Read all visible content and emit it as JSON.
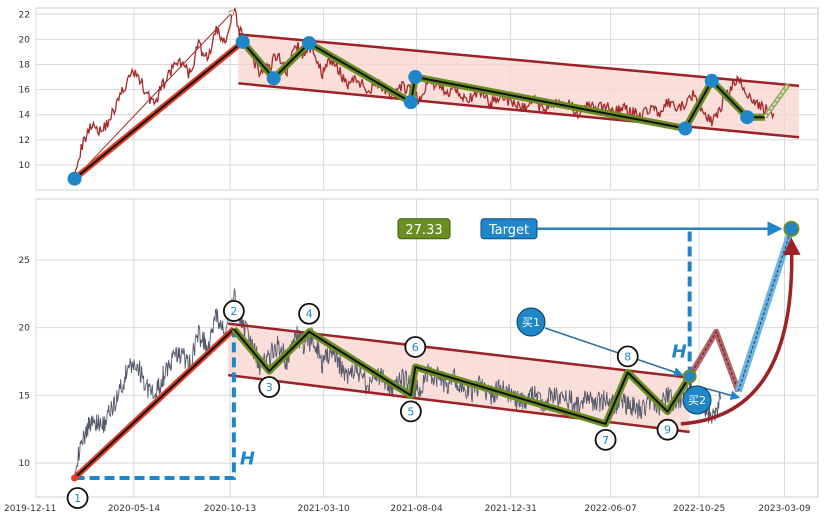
{
  "chart_data": [
    {
      "type": "line",
      "panel": "top",
      "title": "",
      "xlabel": "",
      "ylabel": "",
      "ylim": [
        8,
        22.5
      ],
      "y_ticks": [
        10,
        12,
        14,
        16,
        18,
        20,
        22
      ],
      "grid": true,
      "series": [
        {
          "role": "price",
          "color": "#a52a2a",
          "x": [
            "2020-02-10",
            "2020-02-24",
            "2020-03-09",
            "2020-03-23",
            "2020-04-06",
            "2020-04-20",
            "2020-05-04",
            "2020-05-18",
            "2020-06-01",
            "2020-06-15",
            "2020-06-29",
            "2020-07-13",
            "2020-07-27",
            "2020-08-10",
            "2020-08-24",
            "2020-09-07",
            "2020-09-21",
            "2020-10-05",
            "2020-10-19",
            "2020-11-02",
            "2020-11-16",
            "2020-11-30",
            "2020-12-14",
            "2020-12-28",
            "2021-01-11",
            "2021-01-25",
            "2021-02-08",
            "2021-02-22",
            "2021-03-08",
            "2021-03-22",
            "2021-04-05",
            "2021-04-19",
            "2021-05-03",
            "2021-05-17",
            "2021-05-31",
            "2021-06-14",
            "2021-06-28",
            "2021-07-12",
            "2021-07-26",
            "2021-08-09",
            "2021-08-23",
            "2021-09-06",
            "2021-09-20",
            "2021-10-04",
            "2021-10-18",
            "2021-11-01",
            "2021-11-15",
            "2021-11-29",
            "2021-12-13",
            "2021-12-27",
            "2022-01-10",
            "2022-01-24",
            "2022-02-07",
            "2022-02-21",
            "2022-03-07",
            "2022-03-21",
            "2022-04-04",
            "2022-04-18",
            "2022-05-02",
            "2022-05-16",
            "2022-05-30",
            "2022-06-13",
            "2022-06-27",
            "2022-07-11",
            "2022-07-25",
            "2022-08-08",
            "2022-08-22",
            "2022-09-05",
            "2022-09-19",
            "2022-10-03",
            "2022-10-17",
            "2022-10-31",
            "2022-11-14",
            "2022-11-28",
            "2022-12-12",
            "2022-12-26",
            "2023-01-09",
            "2023-01-23",
            "2023-02-06",
            "2023-02-20"
          ],
          "y": [
            9.6,
            11.8,
            13.4,
            12.6,
            13.7,
            15.2,
            16.8,
            17.4,
            15.9,
            14.8,
            16.4,
            17.6,
            18.1,
            17.2,
            19.6,
            18.4,
            20.6,
            19.8,
            22.1,
            20.3,
            18.6,
            17.2,
            17.8,
            18.9,
            17.5,
            19.6,
            18.7,
            19.4,
            17.2,
            18.4,
            17.3,
            16.4,
            16.9,
            15.8,
            16.6,
            16.1,
            15.3,
            16.2,
            15.8,
            15.2,
            16.7,
            16.4,
            15.7,
            16.3,
            15.4,
            15.2,
            15.9,
            14.9,
            15.6,
            15.1,
            14.7,
            14.6,
            15.2,
            14.3,
            15.1,
            14.6,
            14.8,
            14.1,
            14.9,
            14.4,
            14.7,
            14.3,
            14.5,
            14.2,
            13.9,
            14.6,
            14.1,
            14.9,
            14.4,
            14.8,
            15.6,
            14.2,
            13.4,
            14.7,
            15.9,
            16.8,
            15.7,
            14.9,
            14.4,
            14.1
          ]
        }
      ]
    },
    {
      "type": "line",
      "panel": "bottom",
      "title": "",
      "xlabel": "",
      "ylabel": "",
      "ylim": [
        7.5,
        29.5
      ],
      "y_ticks": [
        10,
        15,
        20,
        25
      ],
      "grid": true,
      "x_tick_labels": [
        "2019-12-11",
        "2020-05-14",
        "2020-10-13",
        "2021-03-10",
        "2021-08-04",
        "2021-12-31",
        "2022-06-07",
        "2022-10-25",
        "2023-03-09"
      ],
      "series": [
        {
          "role": "price",
          "color": "#555a6b",
          "x": [
            "2020-02-10",
            "2020-02-24",
            "2020-03-09",
            "2020-03-23",
            "2020-04-06",
            "2020-04-20",
            "2020-05-04",
            "2020-05-18",
            "2020-06-01",
            "2020-06-15",
            "2020-06-29",
            "2020-07-13",
            "2020-07-27",
            "2020-08-10",
            "2020-08-24",
            "2020-09-07",
            "2020-09-21",
            "2020-10-05",
            "2020-10-19",
            "2020-11-02",
            "2020-11-16",
            "2020-11-30",
            "2020-12-14",
            "2020-12-28",
            "2021-01-11",
            "2021-01-25",
            "2021-02-08",
            "2021-02-22",
            "2021-03-08",
            "2021-03-22",
            "2021-04-05",
            "2021-04-19",
            "2021-05-03",
            "2021-05-17",
            "2021-05-31",
            "2021-06-14",
            "2021-06-28",
            "2021-07-12",
            "2021-07-26",
            "2021-08-09",
            "2021-08-23",
            "2021-09-06",
            "2021-09-20",
            "2021-10-04",
            "2021-10-18",
            "2021-11-01",
            "2021-11-15",
            "2021-11-29",
            "2021-12-13",
            "2021-12-27",
            "2022-01-10",
            "2022-01-24",
            "2022-02-07",
            "2022-02-21",
            "2022-03-07",
            "2022-03-21",
            "2022-04-04",
            "2022-04-18",
            "2022-05-02",
            "2022-05-16",
            "2022-05-30",
            "2022-06-13",
            "2022-06-27",
            "2022-07-11",
            "2022-07-25",
            "2022-08-08",
            "2022-08-22",
            "2022-09-05",
            "2022-09-19",
            "2022-10-03",
            "2022-10-17",
            "2022-10-31",
            "2022-11-14",
            "2022-11-28"
          ],
          "y": [
            9.6,
            11.8,
            13.4,
            12.6,
            13.7,
            15.2,
            16.8,
            17.4,
            15.9,
            14.8,
            16.4,
            17.6,
            18.1,
            17.2,
            19.6,
            18.4,
            20.6,
            19.8,
            22.1,
            20.3,
            18.6,
            17.2,
            17.8,
            18.9,
            17.5,
            19.6,
            18.7,
            19.4,
            17.2,
            18.4,
            17.3,
            16.4,
            16.9,
            15.8,
            16.6,
            16.1,
            15.3,
            16.2,
            15.8,
            15.2,
            16.7,
            16.4,
            15.7,
            16.3,
            15.4,
            15.2,
            15.9,
            14.9,
            15.6,
            15.1,
            14.7,
            14.6,
            15.2,
            14.3,
            15.1,
            14.6,
            14.8,
            14.1,
            14.9,
            14.4,
            14.7,
            14.3,
            14.5,
            14.2,
            13.9,
            14.6,
            14.1,
            14.9,
            14.4,
            14.8,
            15.6,
            14.2,
            13.4,
            14.7
          ]
        }
      ],
      "pivots": [
        {
          "label": "1",
          "x": "2020-02-10",
          "y": 8.9
        },
        {
          "label": "2",
          "x": "2020-10-19",
          "y": 19.9
        },
        {
          "label": "3",
          "x": "2020-12-14",
          "y": 16.8
        },
        {
          "label": "4",
          "x": "2021-02-15",
          "y": 19.7
        },
        {
          "label": "5",
          "x": "2021-07-26",
          "y": 15.0
        },
        {
          "label": "6",
          "x": "2021-08-02",
          "y": 17.1
        },
        {
          "label": "7",
          "x": "2022-05-30",
          "y": 12.9
        },
        {
          "label": "8",
          "x": "2022-07-04",
          "y": 16.7
        },
        {
          "label": "9",
          "x": "2022-09-05",
          "y": 13.8
        }
      ],
      "forecast_points": [
        {
          "x": "2022-10-10",
          "y": 16.4
        },
        {
          "x": "2022-11-21",
          "y": 19.7
        },
        {
          "x": "2022-12-26",
          "y": 15.3
        },
        {
          "x": "2023-03-20",
          "y": 27.3
        }
      ],
      "target_value": "27.33",
      "target_label": "Target",
      "height_label": "H",
      "buy_labels": [
        "买1",
        "买2"
      ]
    }
  ],
  "colors": {
    "price_top": "#a52a2a",
    "price_bottom": "#555a6b",
    "channel": "#9b2226",
    "channel_fill": "#f9d6d0",
    "zigzag_outer": "#6b8e23",
    "zigzag_inner": "#111111",
    "impulse": "#e0401f",
    "accent_blue": "#1f86c8",
    "target_box": "#6b8e23",
    "grid": "#d8d8d8"
  }
}
